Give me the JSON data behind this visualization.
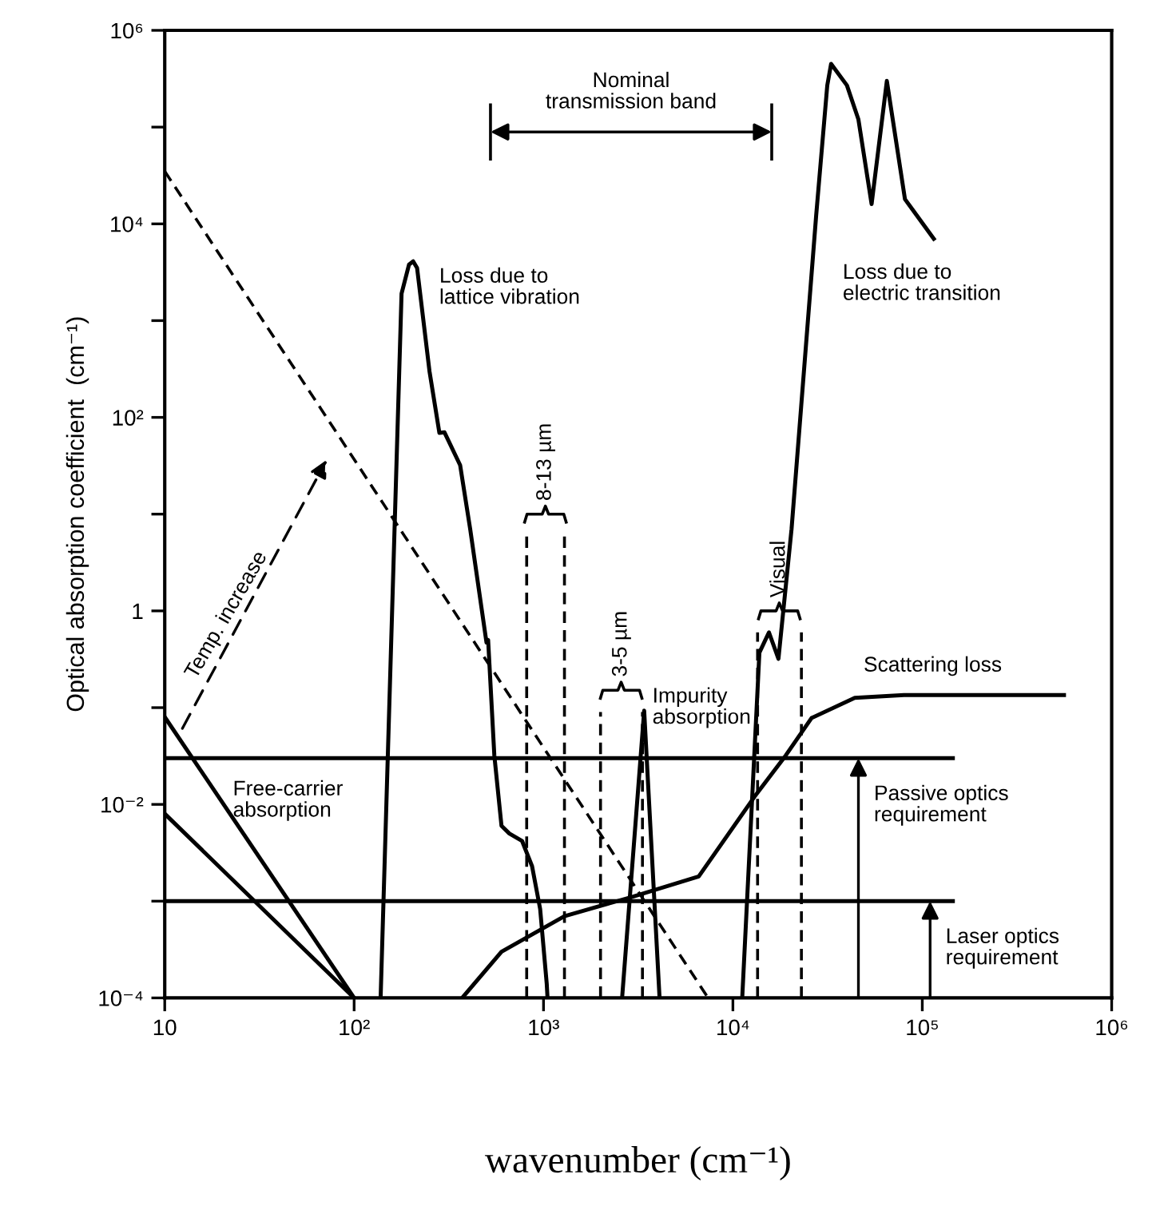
{
  "chart_data": {
    "type": "line",
    "xlabel": "wavenumber (cm⁻¹)",
    "ylabel": "Optical absorption coefficient  (cm⁻¹)",
    "log": "xy",
    "xlim": [
      10,
      1000000
    ],
    "ylim": [
      0.0001,
      1000000
    ],
    "xticks": [
      {
        "value": 10,
        "label": "10"
      },
      {
        "value": 100,
        "label": "10²"
      },
      {
        "value": 1000,
        "label": "10³"
      },
      {
        "value": 10000,
        "label": "10⁴"
      },
      {
        "value": 100000,
        "label": "10⁵"
      },
      {
        "value": 1000000,
        "label": "10⁶"
      }
    ],
    "yticks": [
      {
        "value": 0.0001,
        "label": "10⁻⁴"
      },
      {
        "value": 0.001,
        "label": null
      },
      {
        "value": 0.01,
        "label": "10⁻²"
      },
      {
        "value": 0.1,
        "label": null
      },
      {
        "value": 1,
        "label": "1"
      },
      {
        "value": 10,
        "label": null
      },
      {
        "value": 100,
        "label": "10²"
      },
      {
        "value": 1000,
        "label": null
      },
      {
        "value": 10000,
        "label": "10⁴"
      },
      {
        "value": 100000,
        "label": null
      },
      {
        "value": 1000000,
        "label": "10⁶"
      }
    ],
    "grid": false,
    "series": [
      {
        "color": "#000000",
        "line_style": "dashed",
        "x": [
          10,
          7400
        ],
        "values": [
          35000,
          0.0001
        ]
      },
      {
        "color": "#000000",
        "x": [
          10,
          100
        ],
        "values": [
          0.08,
          0.0001
        ]
      },
      {
        "color": "#000000",
        "x": [
          10,
          100
        ],
        "values": [
          0.008,
          0.0001
        ]
      },
      {
        "color": "#000000",
        "x": [
          138,
          178,
          195,
          205,
          215,
          250,
          282,
          300,
          363,
          410,
          500,
          510,
          550,
          600,
          660,
          770,
          870,
          960,
          1040,
          1050
        ],
        "values": [
          0.0001,
          1900,
          3800,
          4100,
          3500,
          300,
          69,
          70,
          32,
          7,
          0.47,
          0.5,
          0.032,
          0.006,
          0.005,
          0.0042,
          0.0023,
          0.00083,
          0.00014,
          0.0001
        ]
      },
      {
        "color": "#000000",
        "x": [
          372,
          600,
          1290,
          2900,
          6600,
          13000,
          19000,
          26000,
          44000,
          80000,
          560000
        ],
        "values": [
          0.0001,
          0.0003,
          0.0007,
          0.0011,
          0.0018,
          0.012,
          0.032,
          0.078,
          0.126,
          0.135,
          0.135
        ]
      },
      {
        "color": "#000000",
        "x": [
          2600,
          3400,
          4100
        ],
        "values": [
          0.0001,
          0.093,
          0.0001
        ]
      },
      {
        "color": "#000000",
        "x": [
          11200,
          13800,
          15500,
          17400,
          20400,
          27500,
          31500,
          33000,
          40000,
          46000,
          54000,
          65000,
          81000,
          115000
        ],
        "values": [
          0.0001,
          0.37,
          0.6,
          0.32,
          7,
          12000,
          270000,
          450000,
          270000,
          120000,
          16000,
          300000,
          18000,
          7000
        ]
      },
      {
        "color": "#000000",
        "x": [
          10,
          145000
        ],
        "values": [
          0.03,
          0.03
        ]
      },
      {
        "color": "#000000",
        "x": [
          10,
          145000
        ],
        "values": [
          0.001,
          0.001
        ]
      },
      {
        "color": "#000000",
        "line_style": "dashed",
        "x": [
          815,
          815
        ],
        "values": [
          0.0001,
          6
        ]
      },
      {
        "color": "#000000",
        "line_style": "dashed",
        "x": [
          1290,
          1290
        ],
        "values": [
          0.0001,
          6
        ]
      },
      {
        "color": "#000000",
        "line_style": "dashed",
        "x": [
          2000,
          2000
        ],
        "values": [
          0.0001,
          0.09
        ]
      },
      {
        "color": "#000000",
        "line_style": "dashed",
        "x": [
          3330,
          3330
        ],
        "values": [
          0.0001,
          0.09
        ]
      },
      {
        "color": "#000000",
        "line_style": "dashed",
        "x": [
          13500,
          13500
        ],
        "values": [
          0.0001,
          0.6
        ]
      },
      {
        "color": "#000000",
        "line_style": "dashed",
        "x": [
          23000,
          23000
        ],
        "values": [
          0.0001,
          0.6
        ]
      }
    ],
    "annotations": [
      "Loss due to\nlattice vibration",
      "Loss due to\nelectric transition",
      "Temp. increase",
      "Free-carrier\nabsorption",
      "8-13 µm",
      "3-5 µm",
      "Visual",
      "Impurity\nabsorption",
      "Scattering loss",
      "Nominal\ntransmission band",
      {
        "text": "Passive optics\nrequirement",
        "x": 46000,
        "y": 0.03
      },
      {
        "text": "Laser optics\nrequirement",
        "x": 110000,
        "y": 0.001
      }
    ]
  }
}
